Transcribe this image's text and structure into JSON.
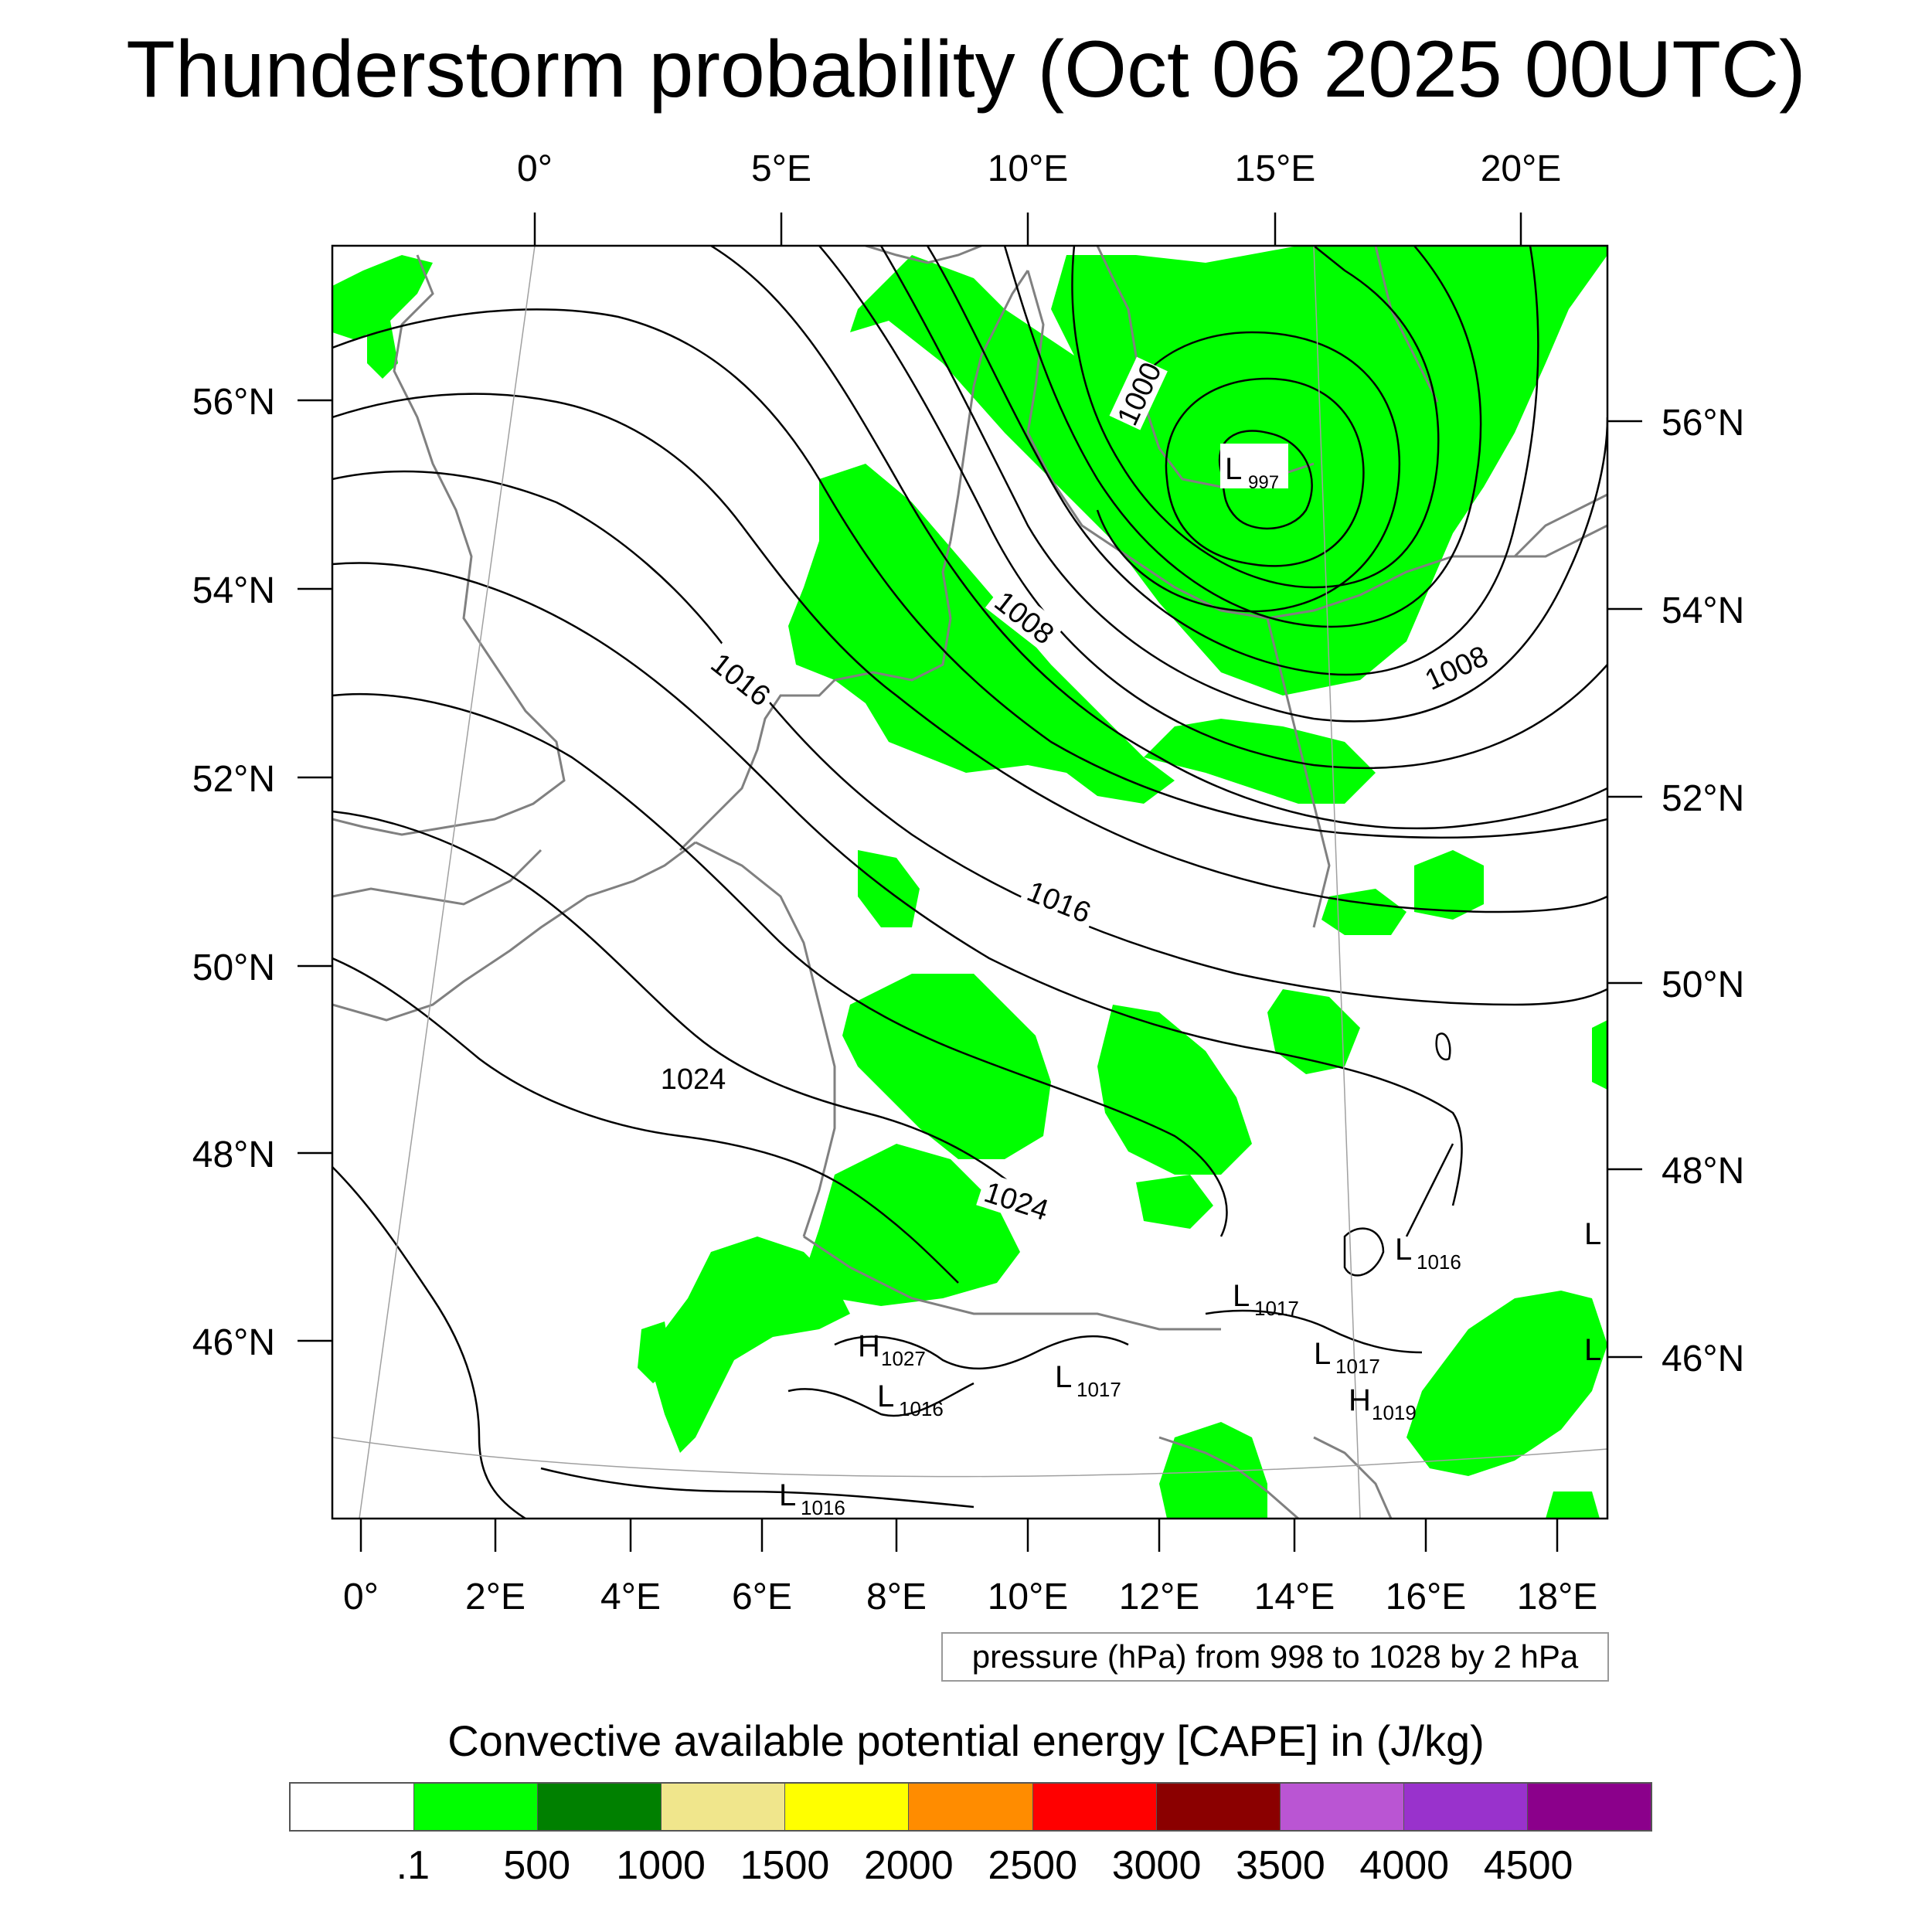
{
  "title": "Thunderstorm probability (Oct 06 2025 00UTC)",
  "top_axis_labels": [
    "0°",
    "5°E",
    "10°E",
    "15°E",
    "20°E"
  ],
  "left_axis_labels": [
    "56°N",
    "54°N",
    "52°N",
    "50°N",
    "48°N",
    "46°N"
  ],
  "right_axis_labels": [
    "56°N",
    "54°N",
    "52°N",
    "50°N",
    "48°N",
    "46°N"
  ],
  "bottom_axis_labels": [
    "0°",
    "2°E",
    "4°E",
    "6°E",
    "8°E",
    "10°E",
    "12°E",
    "14°E",
    "16°E",
    "18°E"
  ],
  "isobar_labels": [
    {
      "text": "1000"
    },
    {
      "text": "1008"
    },
    {
      "text": "1016"
    },
    {
      "text": "1008"
    },
    {
      "text": "1016"
    },
    {
      "text": "1024"
    },
    {
      "text": "1024"
    }
  ],
  "pressure_centers": [
    {
      "letter": "L",
      "value": "997"
    },
    {
      "letter": "L",
      "value": "1016"
    },
    {
      "letter": "L",
      "value": "1017"
    },
    {
      "letter": "H",
      "value": "1027"
    },
    {
      "letter": "L",
      "value": "1016"
    },
    {
      "letter": "L",
      "value": "1017"
    },
    {
      "letter": "L",
      "value": "1017"
    },
    {
      "letter": "H",
      "value": "1019"
    },
    {
      "letter": "L",
      "value": "1016"
    },
    {
      "letter": "L",
      "value": ""
    },
    {
      "letter": "L",
      "value": ""
    }
  ],
  "pressure_note": "pressure (hPa) from 998 to 1028 by 2 hPa",
  "colorbar": {
    "title": "Convective available potential energy [CAPE] in (J/kg)",
    "colors": [
      "#ffffff",
      "#00ff00",
      "#008000",
      "#f0e68c",
      "#ffff00",
      "#ff8c00",
      "#ff0000",
      "#8b0000",
      "#ba55d3",
      "#9932cc",
      "#8b008b"
    ],
    "labels": [
      ".1",
      "500",
      "1000",
      "1500",
      "2000",
      "2500",
      "3000",
      "3500",
      "4000",
      "4500"
    ]
  },
  "colors": {
    "cape_fill": "#00ff00",
    "coastline": "#808080",
    "isobar": "#000000",
    "graticule": "#a0a0a0"
  }
}
